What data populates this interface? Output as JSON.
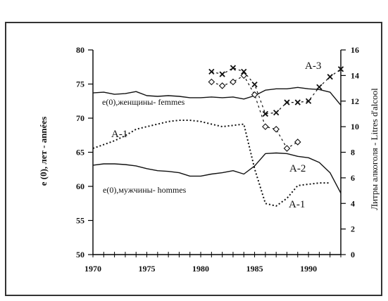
{
  "chart_data": {
    "type": "line",
    "x": {
      "range": [
        1970,
        1993
      ],
      "ticks": [
        1970,
        1975,
        1980,
        1985,
        1990
      ],
      "tick_labels": [
        "1970",
        "1975",
        "1980",
        "1985",
        "1990"
      ]
    },
    "y_left": {
      "label": "e (0), лет - années",
      "range": [
        50,
        80
      ],
      "ticks": [
        50,
        55,
        60,
        65,
        70,
        75,
        80
      ],
      "tick_labels": [
        "50",
        "55",
        "60",
        "65",
        "70",
        "75",
        "80"
      ]
    },
    "y_right": {
      "label": "Литры алкоголя - Litres d'alcool",
      "range": [
        0,
        16
      ],
      "ticks": [
        0,
        2,
        4,
        6,
        8,
        10,
        12,
        14,
        16
      ],
      "tick_labels": [
        "0",
        "2",
        "4",
        "6",
        "8",
        "10",
        "12",
        "14",
        "16"
      ]
    },
    "series": [
      {
        "name": "e(0),женщины- femmes",
        "axis": "left",
        "style": "solid",
        "points": [
          [
            1970,
            73.7
          ],
          [
            1971,
            73.8
          ],
          [
            1972,
            73.5
          ],
          [
            1973,
            73.6
          ],
          [
            1974,
            73.9
          ],
          [
            1975,
            73.3
          ],
          [
            1976,
            73.2
          ],
          [
            1977,
            73.3
          ],
          [
            1978,
            73.2
          ],
          [
            1979,
            73.0
          ],
          [
            1980,
            73.0
          ],
          [
            1981,
            73.1
          ],
          [
            1982,
            73.0
          ],
          [
            1983,
            73.1
          ],
          [
            1984,
            72.8
          ],
          [
            1985,
            73.3
          ],
          [
            1986,
            74.1
          ],
          [
            1987,
            74.3
          ],
          [
            1988,
            74.3
          ],
          [
            1989,
            74.5
          ],
          [
            1990,
            74.3
          ],
          [
            1991,
            74.2
          ],
          [
            1992,
            73.8
          ],
          [
            1993,
            71.9
          ]
        ]
      },
      {
        "name": "e(0),мужчины- hommes",
        "axis": "left",
        "style": "solid",
        "points": [
          [
            1970,
            63.1
          ],
          [
            1971,
            63.3
          ],
          [
            1972,
            63.3
          ],
          [
            1973,
            63.2
          ],
          [
            1974,
            63.0
          ],
          [
            1975,
            62.6
          ],
          [
            1976,
            62.3
          ],
          [
            1977,
            62.2
          ],
          [
            1978,
            62.0
          ],
          [
            1979,
            61.5
          ],
          [
            1980,
            61.5
          ],
          [
            1981,
            61.8
          ],
          [
            1982,
            62.0
          ],
          [
            1983,
            62.3
          ],
          [
            1984,
            61.8
          ],
          [
            1985,
            63.0
          ],
          [
            1986,
            64.8
          ],
          [
            1987,
            64.9
          ],
          [
            1988,
            64.8
          ],
          [
            1989,
            64.4
          ],
          [
            1990,
            64.2
          ],
          [
            1991,
            63.5
          ],
          [
            1992,
            62.0
          ],
          [
            1993,
            59.0
          ]
        ]
      },
      {
        "name": "A-1",
        "axis": "right",
        "style": "dotted",
        "points": [
          [
            1970,
            8.3
          ],
          [
            1971,
            8.6
          ],
          [
            1972,
            8.9
          ],
          [
            1973,
            9.3
          ],
          [
            1974,
            9.8
          ],
          [
            1975,
            10.0
          ],
          [
            1976,
            10.2
          ],
          [
            1977,
            10.4
          ],
          [
            1978,
            10.5
          ],
          [
            1979,
            10.5
          ],
          [
            1980,
            10.4
          ],
          [
            1981,
            10.2
          ],
          [
            1982,
            10.0
          ],
          [
            1983,
            10.1
          ],
          [
            1984,
            10.2
          ],
          [
            1985,
            6.7
          ],
          [
            1986,
            4.0
          ],
          [
            1987,
            3.8
          ],
          [
            1988,
            4.4
          ],
          [
            1989,
            5.4
          ],
          [
            1990,
            5.5
          ],
          [
            1991,
            5.6
          ],
          [
            1992,
            5.6
          ]
        ]
      },
      {
        "name": "A-2",
        "axis": "right",
        "style": "dashed-diamond",
        "points": [
          [
            1981,
            13.5
          ],
          [
            1982,
            13.2
          ],
          [
            1983,
            13.5
          ],
          [
            1984,
            14.0
          ],
          [
            1985,
            12.5
          ],
          [
            1986,
            10.0
          ],
          [
            1987,
            9.8
          ],
          [
            1988,
            8.3
          ],
          [
            1989,
            8.8
          ]
        ]
      },
      {
        "name": "A-3",
        "axis": "right",
        "style": "dashed-x",
        "points": [
          [
            1981,
            14.3
          ],
          [
            1982,
            14.1
          ],
          [
            1983,
            14.6
          ],
          [
            1984,
            14.3
          ],
          [
            1985,
            13.3
          ],
          [
            1986,
            11.0
          ],
          [
            1987,
            11.1
          ],
          [
            1988,
            11.9
          ],
          [
            1989,
            11.9
          ],
          [
            1990,
            12.0
          ],
          [
            1991,
            13.1
          ],
          [
            1992,
            13.9
          ],
          [
            1993,
            14.5
          ]
        ]
      }
    ],
    "annotations": [
      {
        "text": "e(0),женщины- femmes"
      },
      {
        "text": "e(0),мужчины- hommes"
      },
      {
        "text": "A-1"
      },
      {
        "text": "A-1"
      },
      {
        "text": "A-2"
      },
      {
        "text": "A-3"
      }
    ],
    "grid": false,
    "legend": "none (inline labels)"
  }
}
